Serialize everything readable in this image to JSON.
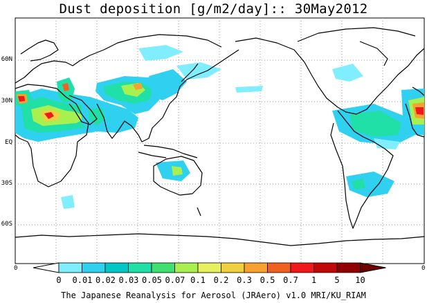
{
  "title": "Dust deposition [g/m2/day]:: 30May2012",
  "y_axis_labels": [
    "60N",
    "30N",
    "EQ",
    "30S",
    "60S"
  ],
  "corner_labels": {
    "left": "0",
    "right": "0"
  },
  "colorbar": {
    "labels": [
      "0",
      "0.01",
      "0.02",
      "0.03",
      "0.05",
      "0.07",
      "0.1",
      "0.2",
      "0.3",
      "0.5",
      "0.7",
      "1",
      "5",
      "10"
    ],
    "colors": [
      "#ffffff",
      "#80eeff",
      "#30d0f0",
      "#00c8c8",
      "#20e0a8",
      "#40e070",
      "#a8f050",
      "#e8f060",
      "#f0d040",
      "#f8a030",
      "#f06020",
      "#f01818",
      "#c00808",
      "#900000",
      "#700000"
    ]
  },
  "credit": "The Japanese Reanalysis for Aerosol (JRAero) v1.0 MRI/KU_RIAM"
}
